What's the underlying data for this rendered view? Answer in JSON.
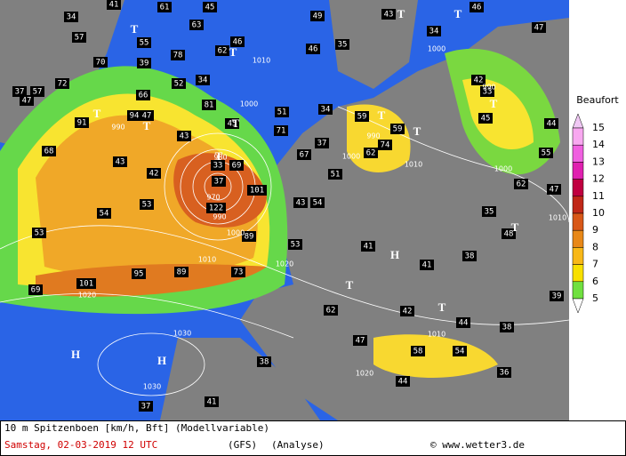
{
  "map": {
    "wind_labels": [
      34,
      41,
      61,
      45,
      49,
      43,
      34,
      46,
      47,
      57,
      70,
      39,
      55,
      63,
      78,
      46,
      62,
      46,
      35,
      52,
      34,
      66,
      94,
      47,
      81,
      45,
      43,
      51,
      71,
      37,
      57,
      47,
      72,
      91,
      68,
      43,
      42,
      53,
      54,
      53,
      33,
      69,
      37,
      101,
      122,
      43,
      54,
      89,
      53,
      73,
      89,
      95,
      101,
      69,
      62,
      42,
      47,
      58,
      54,
      38,
      44,
      36,
      41,
      37,
      67,
      37,
      34,
      51,
      59,
      59,
      74,
      62,
      41,
      41,
      38,
      48,
      35,
      62,
      55,
      44,
      45,
      42,
      33,
      47,
      39,
      44,
      38
    ],
    "pressure_labels": [
      1000,
      990,
      1010,
      1000,
      990,
      980,
      970,
      990,
      1000,
      1010,
      1020,
      1020,
      1030,
      1030,
      1020,
      1010,
      1000,
      1010,
      1000,
      990,
      1010
    ],
    "systems": [
      "T",
      "T",
      "T",
      "T",
      "T",
      "T",
      "T",
      "T",
      "T",
      "T",
      "T",
      "T",
      "T",
      "T",
      "H",
      "H",
      "H"
    ]
  },
  "legend": {
    "title": "Beaufort",
    "levels": [
      15,
      14,
      13,
      12,
      11,
      10,
      9,
      8,
      7,
      6,
      5
    ]
  },
  "footer": {
    "line1": "10 m Spitzenboen [km/h, Bft] (Modellvariable)",
    "date": "Samstag, 02-03-2019  12 UTC",
    "model": "(GFS)",
    "run": "(Analyse)",
    "credit": "© www.wetter3.de"
  }
}
